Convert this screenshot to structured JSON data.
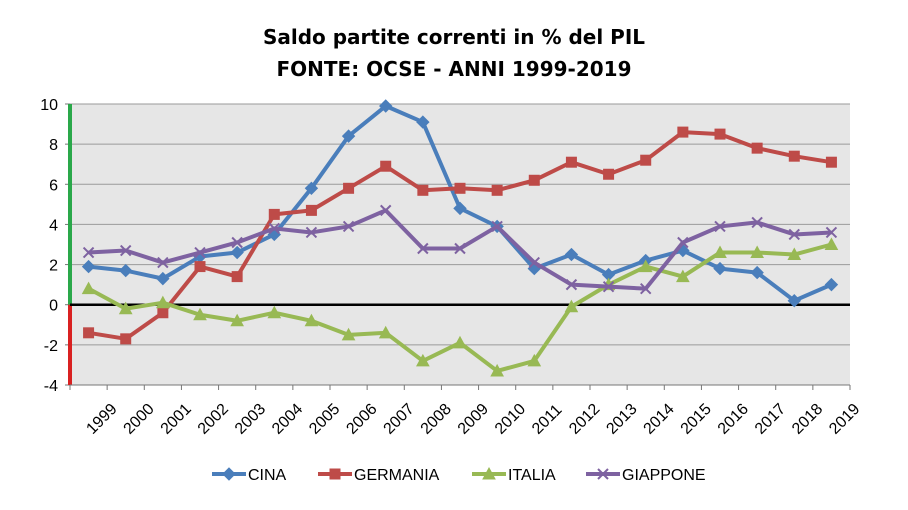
{
  "chart_data": {
    "type": "line",
    "title": "Saldo partite correnti in % del PIL",
    "subtitle": "FONTE: OCSE - ANNI 1999-2019",
    "xlabel": "",
    "ylabel": "",
    "ylim": [
      -4,
      10
    ],
    "yticks": [
      "10",
      "8",
      "6",
      "4",
      "2",
      "0",
      "-2",
      "-4"
    ],
    "ytick_values": [
      10,
      8,
      6,
      4,
      2,
      0,
      -2,
      -4
    ],
    "categories": [
      "1999",
      "2000",
      "2001",
      "2002",
      "2003",
      "2004",
      "2005",
      "2006",
      "2007",
      "2008",
      "2009",
      "2010",
      "2011",
      "2012",
      "2013",
      "2014",
      "2015",
      "2016",
      "2017",
      "2018",
      "2019"
    ],
    "grid": true,
    "legend_position": "bottom",
    "series": [
      {
        "name": "CINA",
        "color": "#4a7ebb",
        "marker": "diamond",
        "values": [
          1.9,
          1.7,
          1.3,
          2.4,
          2.6,
          3.5,
          5.8,
          8.4,
          9.9,
          9.1,
          4.8,
          3.9,
          1.8,
          2.5,
          1.5,
          2.2,
          2.7,
          1.8,
          1.6,
          0.2,
          1.0
        ]
      },
      {
        "name": "GERMANIA",
        "color": "#be4b48",
        "marker": "square",
        "values": [
          -1.4,
          -1.7,
          -0.4,
          1.9,
          1.4,
          4.5,
          4.7,
          5.8,
          6.9,
          5.7,
          5.8,
          5.7,
          6.2,
          7.1,
          6.5,
          7.2,
          8.6,
          8.5,
          7.8,
          7.4,
          7.1
        ]
      },
      {
        "name": "ITALIA",
        "color": "#98b954",
        "marker": "triangle",
        "values": [
          0.8,
          -0.2,
          0.1,
          -0.5,
          -0.8,
          -0.4,
          -0.8,
          -1.5,
          -1.4,
          -2.8,
          -1.9,
          -3.3,
          -2.8,
          -0.1,
          1.0,
          1.9,
          1.4,
          2.6,
          2.6,
          2.5,
          3.0
        ]
      },
      {
        "name": "GIAPPONE",
        "color": "#7e62a1",
        "marker": "x",
        "values": [
          2.6,
          2.7,
          2.1,
          2.6,
          3.1,
          3.8,
          3.6,
          3.9,
          4.7,
          2.8,
          2.8,
          3.9,
          2.1,
          1.0,
          0.9,
          0.8,
          3.1,
          3.9,
          4.1,
          3.5,
          3.6
        ]
      }
    ],
    "axis_colors": {
      "positive": "#2aa84a",
      "negative": "#d92121",
      "zero_line": "#000000"
    }
  }
}
